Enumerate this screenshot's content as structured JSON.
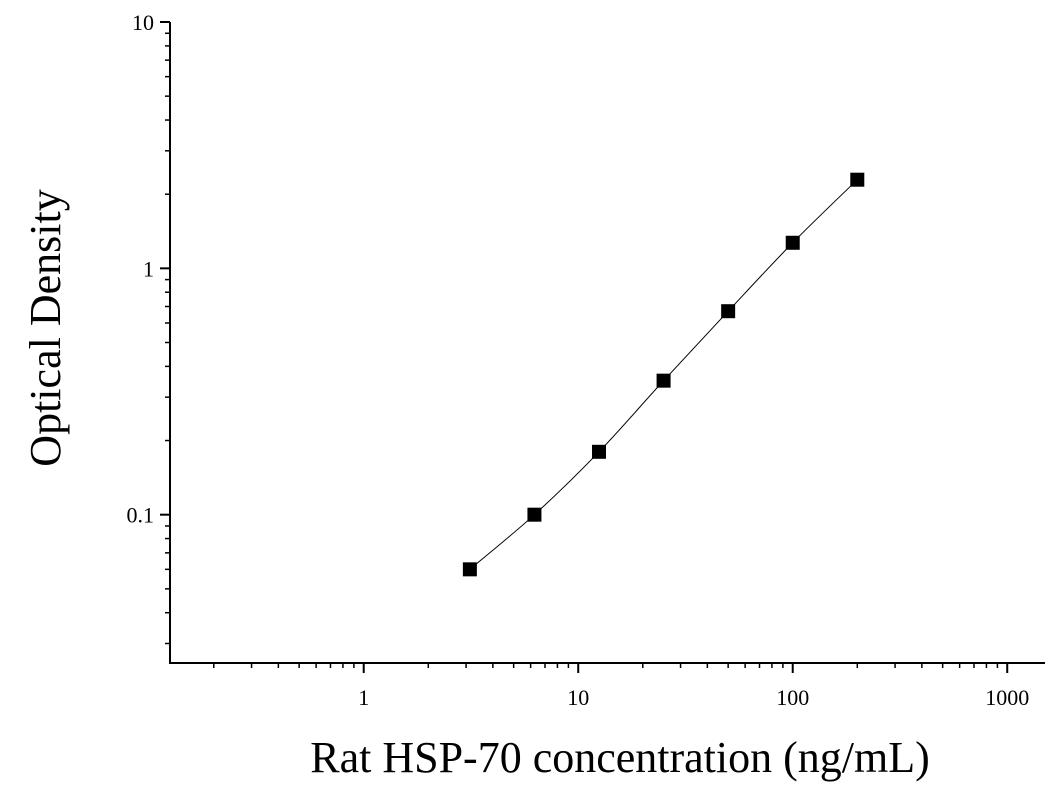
{
  "chart_data": {
    "type": "scatter",
    "title": "",
    "xlabel": "Rat HSP-70 concentration (ng/mL)",
    "ylabel": "Optical Density",
    "x_scale": "log",
    "y_scale": "log",
    "xlim": [
      0.125,
      1500
    ],
    "ylim": [
      0.025,
      10
    ],
    "grid": false,
    "x_ticks": [
      1,
      10,
      100,
      1000
    ],
    "x_tick_labels": [
      "1",
      "10",
      "100",
      "1000"
    ],
    "y_ticks": [
      0.1,
      1,
      10
    ],
    "y_tick_labels": [
      "0.1",
      "1",
      "10"
    ],
    "series": [
      {
        "marker": "square",
        "color": "#000000",
        "line": "smooth",
        "x": [
          3.125,
          6.25,
          12.5,
          25,
          50,
          100,
          200
        ],
        "y": [
          0.06,
          0.1,
          0.18,
          0.35,
          0.67,
          1.27,
          2.29
        ]
      }
    ]
  }
}
